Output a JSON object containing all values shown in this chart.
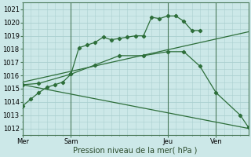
{
  "xlabel": "Pression niveau de la mer( hPa )",
  "ylim": [
    1011.5,
    1021.5
  ],
  "yticks": [
    1012,
    1013,
    1014,
    1015,
    1016,
    1017,
    1018,
    1019,
    1020,
    1021
  ],
  "bg_color": "#cce8e8",
  "grid_color": "#aacfcf",
  "line_color": "#2d6e3a",
  "xtick_labels": [
    "Mer",
    "Sam",
    "Jeu",
    "Ven"
  ],
  "xtick_positions": [
    0,
    24,
    72,
    96
  ],
  "xlim": [
    0,
    112
  ],
  "vline_positions": [
    0,
    24,
    72,
    96
  ],
  "series1_x": [
    0,
    4,
    8,
    12,
    16,
    20,
    24,
    28,
    32,
    36,
    40,
    44,
    48,
    52,
    56,
    60,
    64,
    68,
    72,
    76,
    80,
    84,
    88
  ],
  "series1_y": [
    1013.7,
    1014.2,
    1014.7,
    1015.1,
    1015.3,
    1015.5,
    1016.1,
    1018.1,
    1018.3,
    1018.5,
    1018.9,
    1018.7,
    1018.8,
    1018.9,
    1019.0,
    1019.0,
    1020.4,
    1020.3,
    1020.5,
    1020.5,
    1020.1,
    1019.4,
    1019.4
  ],
  "series2_x": [
    0,
    8,
    24,
    36,
    48,
    60,
    72,
    80,
    88,
    96,
    108,
    112
  ],
  "series2_y": [
    1015.3,
    1015.4,
    1016.1,
    1016.8,
    1017.5,
    1017.5,
    1017.8,
    1017.8,
    1016.7,
    1014.7,
    1013.0,
    1012.1
  ],
  "series3_x": [
    0,
    112
  ],
  "series3_y": [
    1015.5,
    1019.3
  ],
  "series4_x": [
    0,
    112
  ],
  "series4_y": [
    1015.3,
    1012.0
  ]
}
